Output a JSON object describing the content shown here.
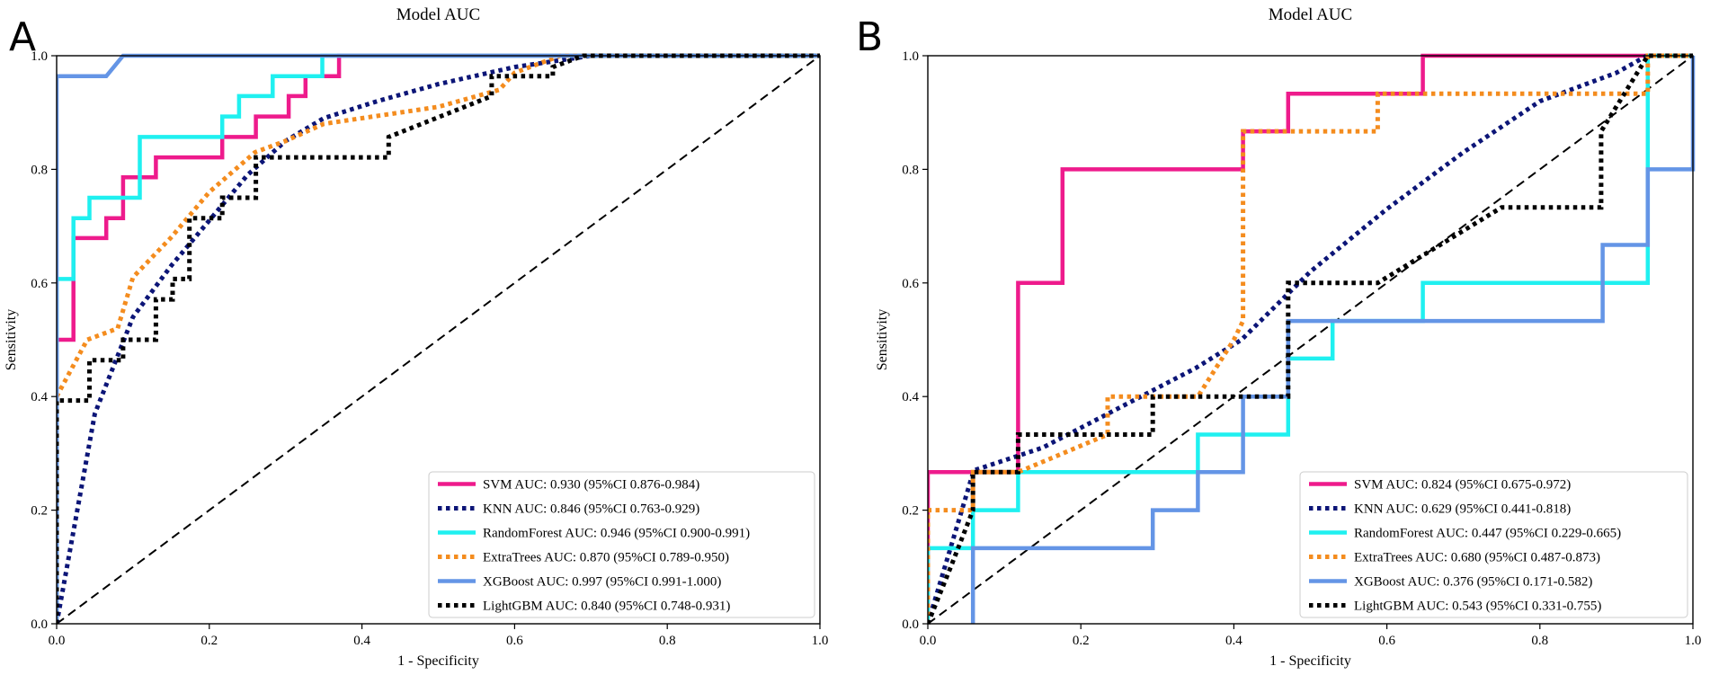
{
  "panels": [
    {
      "letter": "A",
      "title": "Model AUC",
      "xlabel": "1 - Specificity",
      "ylabel": "Sensitivity"
    },
    {
      "letter": "B",
      "title": "Model AUC",
      "xlabel": "1 - Specificity",
      "ylabel": "Sensitivity"
    }
  ],
  "styles": {
    "SVM": {
      "color": "#ee1b8c",
      "dash": "solid"
    },
    "KNN": {
      "color": "#0c1577",
      "dash": "dotted"
    },
    "RandomForest": {
      "color": "#1ff0f0",
      "dash": "solid"
    },
    "ExtraTrees": {
      "color": "#f48c1e",
      "dash": "dotted"
    },
    "XGBoost": {
      "color": "#6495e6",
      "dash": "solid"
    },
    "LightGBM": {
      "color": "#000000",
      "dash": "dotted"
    }
  },
  "chart_data": [
    {
      "type": "line",
      "title": "Model AUC",
      "xlabel": "1 - Specificity",
      "ylabel": "Sensitivity",
      "xlim": [
        0,
        1
      ],
      "ylim": [
        0,
        1
      ],
      "xticks": [
        "0.0",
        "0.2",
        "0.4",
        "0.6",
        "0.8",
        "1.0"
      ],
      "yticks": [
        "0.0",
        "0.2",
        "0.4",
        "0.6",
        "0.8",
        "1.0"
      ],
      "legend_position": "lower-right",
      "reference_line": {
        "x": [
          0,
          1
        ],
        "y": [
          0,
          1
        ],
        "style": "dashed"
      },
      "series": [
        {
          "name": "SVM AUC: 0.930 (95%CI 0.876-0.984)",
          "model": "SVM",
          "x": [
            0,
            0,
            0.022,
            0.022,
            0.065,
            0.065,
            0.087,
            0.087,
            0.109,
            0.109,
            0.13,
            0.13,
            0.217,
            0.217,
            0.261,
            0.261,
            0.283,
            0.283,
            0.304,
            0.304,
            0.326,
            0.326,
            0.348,
            0.348,
            0.37,
            0.37,
            1
          ],
          "y": [
            0,
            0.5,
            0.5,
            0.679,
            0.679,
            0.714,
            0.714,
            0.786,
            0.786,
            0.786,
            0.786,
            0.821,
            0.821,
            0.857,
            0.857,
            0.893,
            0.893,
            0.893,
            0.893,
            0.929,
            0.929,
            0.964,
            0.964,
            0.964,
            0.964,
            1,
            1
          ]
        },
        {
          "name": "KNN AUC: 0.846 (95%CI 0.763-0.929)",
          "model": "KNN",
          "x": [
            0,
            0.05,
            0.1,
            0.15,
            0.2,
            0.25,
            0.3,
            0.35,
            0.42,
            0.5,
            0.6,
            0.7,
            1
          ],
          "y": [
            0,
            0.37,
            0.54,
            0.63,
            0.71,
            0.79,
            0.85,
            0.89,
            0.92,
            0.95,
            0.98,
            1,
            1
          ]
        },
        {
          "name": "RandomForest AUC: 0.946 (95%CI 0.900-0.991)",
          "model": "RandomForest",
          "x": [
            0,
            0,
            0.022,
            0.022,
            0.043,
            0.043,
            0.087,
            0.087,
            0.109,
            0.109,
            0.217,
            0.217,
            0.239,
            0.239,
            0.283,
            0.283,
            0.348,
            0.348,
            1
          ],
          "y": [
            0,
            0.607,
            0.607,
            0.714,
            0.714,
            0.75,
            0.75,
            0.75,
            0.75,
            0.857,
            0.857,
            0.893,
            0.893,
            0.929,
            0.929,
            0.964,
            0.964,
            1,
            1
          ]
        },
        {
          "name": "ExtraTrees AUC: 0.870 (95%CI 0.789-0.950)",
          "model": "ExtraTrees",
          "x": [
            0,
            0.04,
            0.08,
            0.1,
            0.15,
            0.2,
            0.26,
            0.3,
            0.35,
            0.4,
            0.5,
            0.58,
            0.6,
            0.62,
            0.66,
            1
          ],
          "y": [
            0.4,
            0.5,
            0.52,
            0.61,
            0.68,
            0.76,
            0.83,
            0.85,
            0.88,
            0.89,
            0.91,
            0.94,
            0.97,
            0.98,
            1,
            1
          ]
        },
        {
          "name": "XGBoost AUC: 0.997 (95%CI 0.991-1.000)",
          "model": "XGBoost",
          "x": [
            0,
            0,
            0.065,
            0.087,
            0.087,
            1
          ],
          "y": [
            0,
            0.964,
            0.964,
            1,
            1,
            1
          ]
        },
        {
          "name": "LightGBM AUC: 0.840 (95%CI 0.748-0.931)",
          "model": "LightGBM",
          "x": [
            0,
            0,
            0.043,
            0.043,
            0.087,
            0.087,
            0.13,
            0.13,
            0.152,
            0.152,
            0.174,
            0.174,
            0.217,
            0.217,
            0.261,
            0.261,
            0.435,
            0.435,
            0.57,
            0.57,
            0.65,
            0.65,
            0.69,
            1
          ],
          "y": [
            0,
            0.393,
            0.393,
            0.464,
            0.464,
            0.5,
            0.5,
            0.571,
            0.571,
            0.607,
            0.607,
            0.714,
            0.714,
            0.75,
            0.75,
            0.821,
            0.821,
            0.857,
            0.929,
            0.964,
            0.964,
            0.98,
            1,
            1
          ]
        }
      ]
    },
    {
      "type": "line",
      "title": "Model AUC",
      "xlabel": "1 - Specificity",
      "ylabel": "Sensitivity",
      "xlim": [
        0,
        1
      ],
      "ylim": [
        0,
        1
      ],
      "xticks": [
        "0.0",
        "0.2",
        "0.4",
        "0.6",
        "0.8",
        "1.0"
      ],
      "yticks": [
        "0.0",
        "0.2",
        "0.4",
        "0.6",
        "0.8",
        "1.0"
      ],
      "legend_position": "lower-right",
      "reference_line": {
        "x": [
          0,
          1
        ],
        "y": [
          0,
          1
        ],
        "style": "dashed"
      },
      "series": [
        {
          "name": "SVM AUC: 0.824 (95%CI 0.675-0.972)",
          "model": "SVM",
          "x": [
            0,
            0,
            0.118,
            0.118,
            0.176,
            0.176,
            0.412,
            0.412,
            0.471,
            0.471,
            0.647,
            0.647,
            0.941,
            0.941,
            1,
            1
          ],
          "y": [
            0,
            0.267,
            0.267,
            0.6,
            0.6,
            0.8,
            0.8,
            0.867,
            0.867,
            0.933,
            0.933,
            1,
            1,
            1,
            1,
            1
          ]
        },
        {
          "name": "KNN AUC: 0.629 (95%CI 0.441-0.818)",
          "model": "KNN",
          "x": [
            0,
            0.06,
            0.15,
            0.25,
            0.35,
            0.41,
            0.5,
            0.6,
            0.7,
            0.8,
            0.9,
            0.94,
            1
          ],
          "y": [
            0,
            0.27,
            0.31,
            0.38,
            0.45,
            0.5,
            0.62,
            0.73,
            0.83,
            0.92,
            0.97,
            1,
            1
          ]
        },
        {
          "name": "RandomForest AUC: 0.447 (95%CI 0.229-0.665)",
          "model": "RandomForest",
          "x": [
            0,
            0,
            0.059,
            0.059,
            0.118,
            0.118,
            0.353,
            0.353,
            0.471,
            0.471,
            0.529,
            0.529,
            0.647,
            0.647,
            0.941,
            0.941,
            1
          ],
          "y": [
            0,
            0.133,
            0.133,
            0.2,
            0.2,
            0.267,
            0.267,
            0.333,
            0.333,
            0.467,
            0.467,
            0.533,
            0.533,
            0.6,
            0.6,
            1,
            1
          ]
        },
        {
          "name": "ExtraTrees AUC: 0.680 (95%CI 0.487-0.873)",
          "model": "ExtraTrees",
          "x": [
            0,
            0,
            0.059,
            0.059,
            0.118,
            0.235,
            0.235,
            0.294,
            0.353,
            0.4,
            0.412,
            0.412,
            0.588,
            0.588,
            0.941,
            0.941,
            1
          ],
          "y": [
            0,
            0.2,
            0.2,
            0.267,
            0.267,
            0.333,
            0.4,
            0.4,
            0.4,
            0.5,
            0.533,
            0.867,
            0.867,
            0.933,
            0.933,
            1,
            1
          ]
        },
        {
          "name": "XGBoost AUC: 0.376 (95%CI 0.171-0.582)",
          "model": "XGBoost",
          "x": [
            0.059,
            0.059,
            0.294,
            0.294,
            0.353,
            0.353,
            0.412,
            0.412,
            0.471,
            0.471,
            0.882,
            0.882,
            0.941,
            0.941,
            1,
            1
          ],
          "y": [
            0,
            0.133,
            0.133,
            0.2,
            0.2,
            0.267,
            0.267,
            0.4,
            0.4,
            0.533,
            0.533,
            0.667,
            0.667,
            0.8,
            0.8,
            1
          ]
        },
        {
          "name": "LightGBM AUC: 0.543 (95%CI 0.331-0.755)",
          "model": "LightGBM",
          "x": [
            0,
            0.03,
            0.059,
            0.059,
            0.118,
            0.118,
            0.294,
            0.294,
            0.471,
            0.471,
            0.588,
            0.75,
            0.88,
            0.88,
            0.941,
            1
          ],
          "y": [
            0,
            0.1,
            0.2,
            0.267,
            0.267,
            0.333,
            0.333,
            0.4,
            0.4,
            0.6,
            0.6,
            0.733,
            0.733,
            0.867,
            1,
            1
          ]
        }
      ]
    }
  ]
}
